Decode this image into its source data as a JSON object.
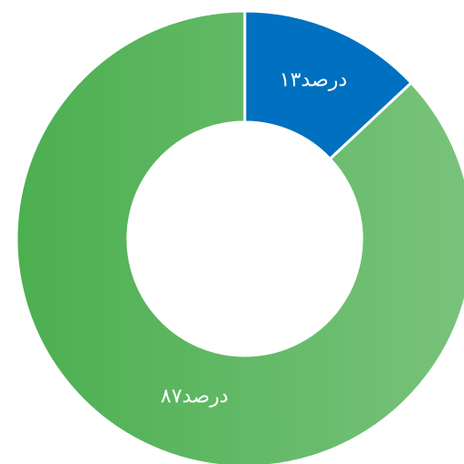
{
  "chart_data": {
    "type": "donut",
    "values": [
      13,
      87
    ],
    "value_labels": [
      "۱۳درصد",
      "۸۷درصد"
    ],
    "colors": [
      "#0070c0",
      "#4caf50"
    ]
  }
}
